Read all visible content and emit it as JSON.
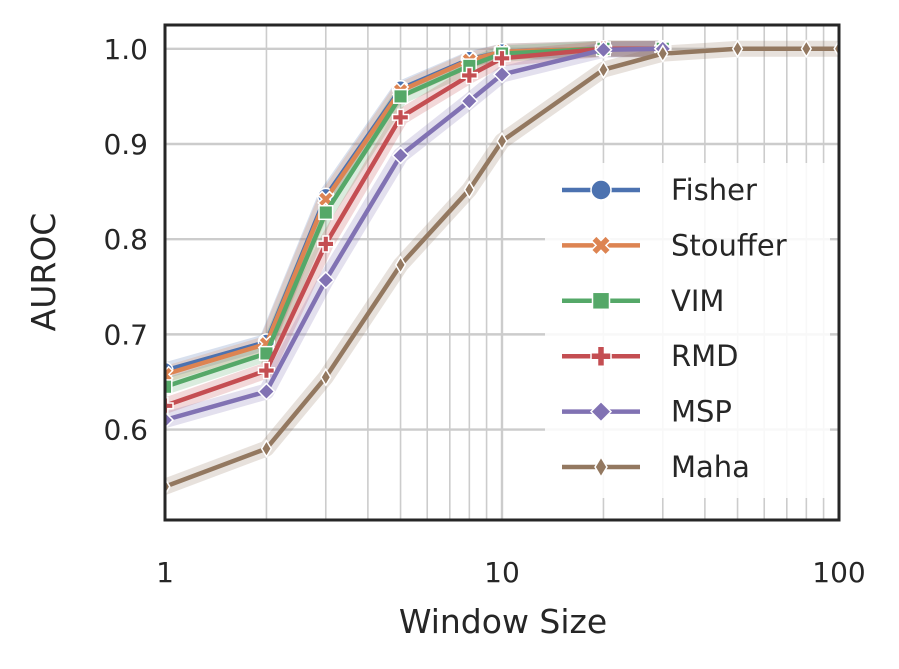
{
  "chart_data": {
    "type": "line",
    "xlabel": "Window Size",
    "ylabel": "AUROC",
    "x_scale": "log",
    "xlim": [
      1,
      100
    ],
    "ylim": [
      0.505,
      1.025
    ],
    "x_ticks": [
      1,
      10,
      100
    ],
    "x_tick_labels": [
      "1",
      "10",
      "100"
    ],
    "y_ticks": [
      0.6,
      0.7,
      0.8,
      0.9,
      1.0
    ],
    "y_tick_labels": [
      "0.6",
      "0.7",
      "0.8",
      "0.9",
      "1.0"
    ],
    "grid": true,
    "legend_position": "lower right",
    "series": [
      {
        "name": "Fisher",
        "color": "#4c72b0",
        "marker": "circle",
        "x": [
          1,
          2,
          3,
          5,
          8,
          10,
          20,
          30
        ],
        "y": [
          0.662,
          0.692,
          0.845,
          0.958,
          0.989,
          0.997,
          1.0,
          1.0
        ]
      },
      {
        "name": "Stouffer",
        "color": "#dd8452",
        "marker": "x",
        "x": [
          1,
          2,
          3,
          5,
          8,
          10,
          20,
          30
        ],
        "y": [
          0.658,
          0.69,
          0.842,
          0.956,
          0.988,
          0.997,
          1.0,
          1.0
        ]
      },
      {
        "name": "VIM",
        "color": "#55a868",
        "marker": "square",
        "x": [
          1,
          2,
          3,
          5,
          8,
          10,
          20,
          30
        ],
        "y": [
          0.645,
          0.68,
          0.828,
          0.95,
          0.982,
          0.995,
          1.0,
          1.0
        ]
      },
      {
        "name": "RMD",
        "color": "#c44e52",
        "marker": "plus",
        "x": [
          1,
          2,
          3,
          5,
          8,
          10,
          20,
          30
        ],
        "y": [
          0.625,
          0.662,
          0.795,
          0.928,
          0.972,
          0.99,
          1.0,
          1.0
        ]
      },
      {
        "name": "MSP",
        "color": "#8172b3",
        "marker": "diamond",
        "x": [
          1,
          2,
          3,
          5,
          8,
          10,
          20,
          30
        ],
        "y": [
          0.61,
          0.64,
          0.757,
          0.888,
          0.945,
          0.973,
          0.999,
          1.0
        ]
      },
      {
        "name": "Maha",
        "color": "#937860",
        "marker": "thin_diamond",
        "x": [
          1,
          2,
          3,
          5,
          8,
          10,
          20,
          30,
          50,
          80,
          100
        ],
        "y": [
          0.54,
          0.58,
          0.655,
          0.773,
          0.852,
          0.903,
          0.978,
          0.995,
          1.0,
          1.0,
          1.0
        ]
      }
    ]
  }
}
